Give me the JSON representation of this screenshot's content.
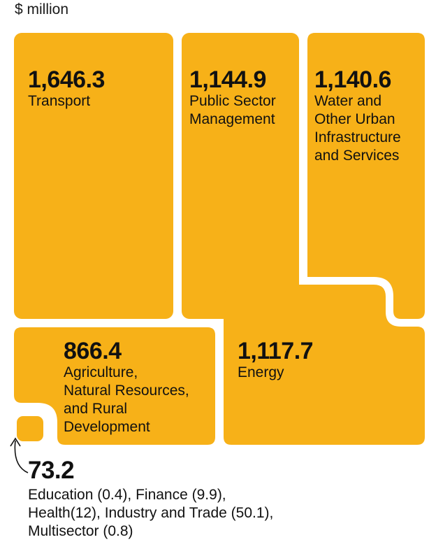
{
  "unit_label": "$ million",
  "colors": {
    "tile": "#F7B118",
    "text": "#111111",
    "background": "#FFFFFF"
  },
  "chart_data": {
    "type": "treemap",
    "unit": "$ million",
    "items": [
      {
        "value_text": "1,646.3",
        "value": 1646.3,
        "label": "Transport"
      },
      {
        "value_text": "1,144.9",
        "value": 1144.9,
        "label": "Public Sector\nManagement"
      },
      {
        "value_text": "1,140.6",
        "value": 1140.6,
        "label": "Water and\nOther Urban\nInfrastructure\nand Services"
      },
      {
        "value_text": "866.4",
        "value": 866.4,
        "label": "Agriculture,\nNatural Resources,\nand Rural\nDevelopment"
      },
      {
        "value_text": "1,117.7",
        "value": 1117.7,
        "label": "Energy"
      },
      {
        "value_text": "73.2",
        "value": 73.2,
        "label": "Education (0.4), Finance (9.9),\nHealth(12), Industry and Trade (50.1),\nMultisector (0.8)"
      }
    ]
  }
}
